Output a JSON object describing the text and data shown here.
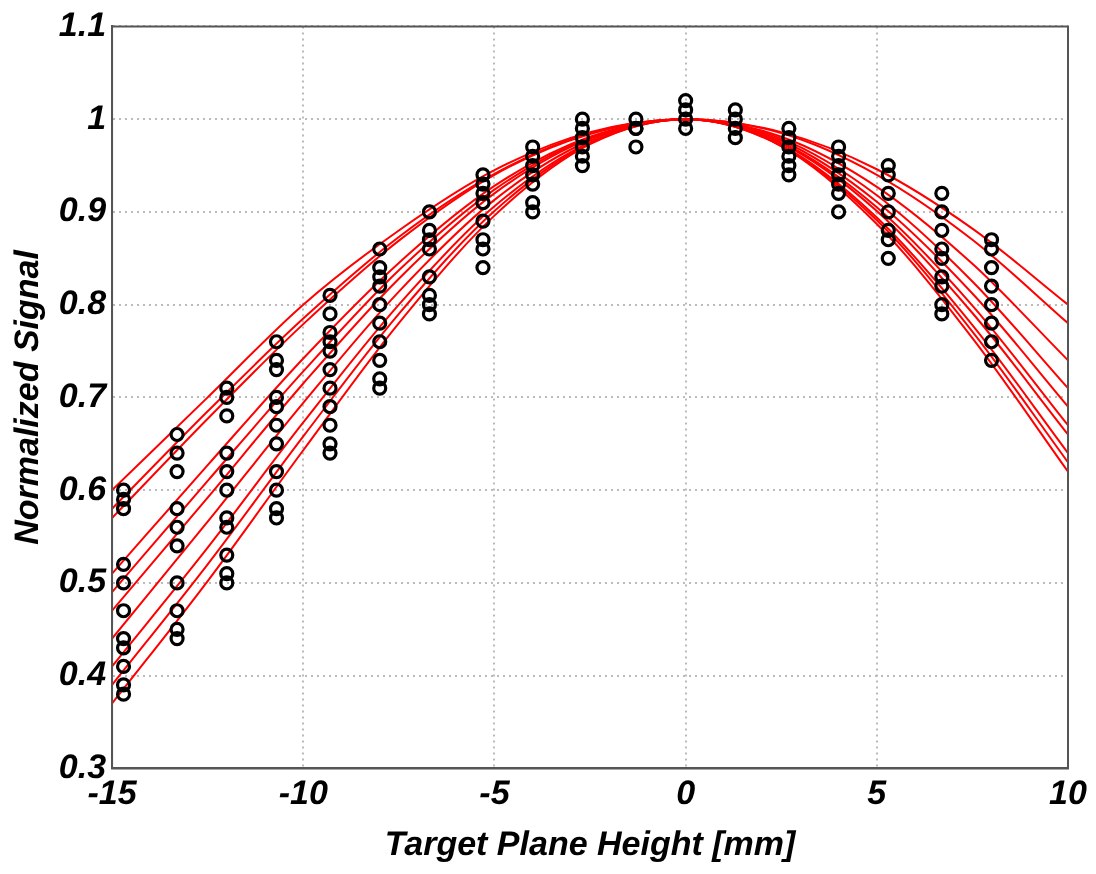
{
  "chart_data": {
    "type": "line",
    "xlabel": "Target Plane Height [mm]",
    "ylabel": "Normalized Signal",
    "xlim": [
      -15,
      10
    ],
    "xticks": [
      -15,
      -10,
      -5,
      0,
      5,
      10
    ],
    "ylim": [
      0.3,
      1.1
    ],
    "yticks": [
      0.3,
      0.4,
      0.5,
      0.6,
      0.7,
      0.8,
      0.9,
      1,
      1.1
    ],
    "grid": true,
    "legend": false,
    "line_style": "solid",
    "x": [
      -15,
      -12.5,
      -10,
      -7.5,
      -5,
      -2.5,
      0,
      2.5,
      5,
      7.5,
      10
    ],
    "series": [
      {
        "marker": "none",
        "color": "#ff0000",
        "values": [
          0.6,
          0.7,
          0.8,
          0.88,
          0.945,
          0.986,
          1,
          0.986,
          0.946,
          0.882,
          0.8
        ]
      },
      {
        "type": "line",
        "marker": "none",
        "color": "#ff0000",
        "values": [
          0.58,
          0.685,
          0.785,
          0.873,
          0.941,
          0.985,
          1,
          0.985,
          0.94,
          0.87,
          0.78
        ]
      },
      {
        "type": "line",
        "marker": "none",
        "color": "#ff0000",
        "values": [
          0.57,
          0.677,
          0.779,
          0.869,
          0.94,
          0.984,
          1,
          0.981,
          0.927,
          0.844,
          0.74
        ]
      },
      {
        "type": "line",
        "marker": "none",
        "color": "#ff0000",
        "values": [
          0.51,
          0.627,
          0.742,
          0.845,
          0.928,
          0.981,
          1,
          0.979,
          0.918,
          0.825,
          0.71
        ]
      },
      {
        "type": "line",
        "marker": "none",
        "color": "#ff0000",
        "values": [
          0.49,
          0.61,
          0.728,
          0.837,
          0.924,
          0.98,
          1,
          0.977,
          0.911,
          0.812,
          0.69
        ]
      },
      {
        "type": "line",
        "marker": "none",
        "color": "#ff0000",
        "values": [
          0.47,
          0.592,
          0.715,
          0.828,
          0.92,
          0.979,
          1,
          0.975,
          0.905,
          0.799,
          0.67
        ]
      },
      {
        "type": "line",
        "marker": "none",
        "color": "#ff0000",
        "values": [
          0.44,
          0.566,
          0.694,
          0.814,
          0.913,
          0.977,
          1,
          0.974,
          0.901,
          0.791,
          0.66
        ]
      },
      {
        "type": "line",
        "marker": "none",
        "color": "#ff0000",
        "values": [
          0.41,
          0.538,
          0.673,
          0.8,
          0.906,
          0.975,
          1,
          0.972,
          0.894,
          0.778,
          0.64
        ]
      },
      {
        "type": "line",
        "marker": "none",
        "color": "#ff0000",
        "values": [
          0.39,
          0.52,
          0.658,
          0.79,
          0.901,
          0.974,
          1,
          0.971,
          0.891,
          0.771,
          0.63
        ]
      },
      {
        "type": "line",
        "marker": "none",
        "color": "#ff0000",
        "values": [
          0.37,
          0.502,
          0.643,
          0.78,
          0.896,
          0.973,
          1,
          0.971,
          0.887,
          0.764,
          0.62
        ]
      },
      {
        "type": "scatter",
        "marker": "circle",
        "color": "#000000",
        "x": [
          -14.7,
          -14.7,
          -14.7,
          -14.7,
          -14.7,
          -14.7,
          -14.7,
          -14.7,
          -14.7,
          -14.7,
          -14.7,
          -13.3,
          -13.3,
          -13.3,
          -13.3,
          -13.3,
          -13.3,
          -13.3,
          -13.3,
          -13.3,
          -13.3,
          -12,
          -12,
          -12,
          -12,
          -12,
          -12,
          -12,
          -12,
          -12,
          -12,
          -12,
          -10.7,
          -10.7,
          -10.7,
          -10.7,
          -10.7,
          -10.7,
          -10.7,
          -10.7,
          -10.7,
          -10.7,
          -10.7,
          -9.3,
          -9.3,
          -9.3,
          -9.3,
          -9.3,
          -9.3,
          -9.3,
          -9.3,
          -9.3,
          -9.3,
          -9.3,
          -8,
          -8,
          -8,
          -8,
          -8,
          -8,
          -8,
          -8,
          -8,
          -8,
          -6.7,
          -6.7,
          -6.7,
          -6.7,
          -6.7,
          -6.7,
          -6.7,
          -6.7,
          -5.3,
          -5.3,
          -5.3,
          -5.3,
          -5.3,
          -5.3,
          -5.3,
          -5.3,
          -4,
          -4,
          -4,
          -4,
          -4,
          -4,
          -4,
          -2.7,
          -2.7,
          -2.7,
          -2.7,
          -2.7,
          -2.7,
          -1.3,
          -1.3,
          -1.3,
          -1.3,
          0,
          0,
          0,
          0,
          1.3,
          1.3,
          1.3,
          1.3,
          2.7,
          2.7,
          2.7,
          2.7,
          2.7,
          2.7,
          4,
          4,
          4,
          4,
          4,
          4,
          4,
          5.3,
          5.3,
          5.3,
          5.3,
          5.3,
          5.3,
          5.3,
          6.7,
          6.7,
          6.7,
          6.7,
          6.7,
          6.7,
          6.7,
          6.7,
          6.7,
          8,
          8,
          8,
          8,
          8,
          8,
          8,
          8
        ],
        "values": [
          0.6,
          0.59,
          0.58,
          0.52,
          0.5,
          0.47,
          0.44,
          0.43,
          0.41,
          0.39,
          0.38,
          0.66,
          0.64,
          0.62,
          0.58,
          0.56,
          0.54,
          0.5,
          0.47,
          0.45,
          0.44,
          0.71,
          0.7,
          0.68,
          0.64,
          0.62,
          0.6,
          0.57,
          0.56,
          0.53,
          0.51,
          0.5,
          0.76,
          0.74,
          0.73,
          0.7,
          0.69,
          0.67,
          0.65,
          0.62,
          0.6,
          0.58,
          0.57,
          0.81,
          0.79,
          0.77,
          0.76,
          0.75,
          0.73,
          0.71,
          0.69,
          0.67,
          0.65,
          0.64,
          0.86,
          0.84,
          0.83,
          0.82,
          0.8,
          0.78,
          0.76,
          0.74,
          0.72,
          0.71,
          0.9,
          0.88,
          0.87,
          0.86,
          0.83,
          0.81,
          0.8,
          0.79,
          0.94,
          0.93,
          0.92,
          0.91,
          0.89,
          0.87,
          0.86,
          0.84,
          0.97,
          0.96,
          0.95,
          0.94,
          0.93,
          0.91,
          0.9,
          1,
          0.99,
          0.98,
          0.97,
          0.96,
          0.95,
          1,
          0.99,
          0.99,
          0.97,
          1.02,
          1.01,
          1,
          0.99,
          1.01,
          1,
          0.99,
          0.98,
          0.99,
          0.98,
          0.97,
          0.96,
          0.95,
          0.94,
          0.97,
          0.96,
          0.95,
          0.94,
          0.93,
          0.92,
          0.9,
          0.95,
          0.94,
          0.92,
          0.9,
          0.88,
          0.87,
          0.85,
          0.92,
          0.9,
          0.88,
          0.86,
          0.85,
          0.83,
          0.82,
          0.8,
          0.79,
          0.87,
          0.86,
          0.84,
          0.82,
          0.8,
          0.78,
          0.76,
          0.74
        ]
      }
    ]
  }
}
